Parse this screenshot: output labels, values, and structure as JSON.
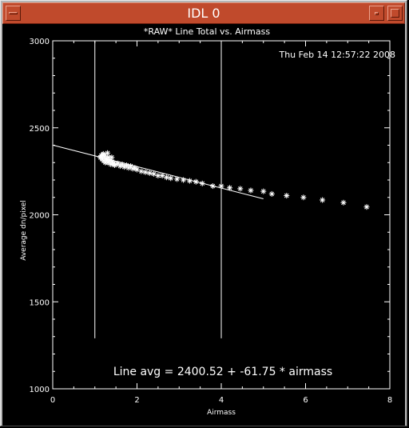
{
  "window": {
    "title": "IDL 0",
    "icons": {
      "menu": "window-menu-icon",
      "minimize": "minimize-icon",
      "maximize": "maximize-icon"
    }
  },
  "colors": {
    "titlebar": "#c04a2c",
    "plot_bg": "#000000",
    "plot_fg": "#ffffff",
    "frame": "#b5b5b5"
  },
  "chart_data": {
    "type": "scatter",
    "title": "*RAW* Line Total vs. Airmass",
    "timestamp": "Thu Feb 14 12:57:22 2008",
    "xlabel": "Airmass",
    "ylabel": "Average dn/pixel",
    "xlim": [
      0,
      8
    ],
    "ylim": [
      1000,
      3000
    ],
    "x_ticks": [
      "0",
      "2",
      "4",
      "6",
      "8"
    ],
    "y_ticks": [
      "1000",
      "1500",
      "2000",
      "2500",
      "3000"
    ],
    "grid": false,
    "annotation": "Line avg = 2400.52 + -61.75 * airmass",
    "fit": {
      "intercept": 2400.52,
      "slope": -61.75,
      "x_range": [
        0,
        5
      ]
    },
    "vertical_lines": [
      {
        "x": 1,
        "y_range": [
          1290,
          3000
        ]
      },
      {
        "x": 4,
        "y_range": [
          1290,
          3000
        ]
      }
    ],
    "series": [
      {
        "marker": "asterisk",
        "x": [
          1.13,
          1.15,
          1.17,
          1.19,
          1.21,
          1.23,
          1.25,
          1.27,
          1.29,
          1.31,
          1.33,
          1.35,
          1.38,
          1.41,
          1.44,
          1.47,
          1.5,
          1.55,
          1.6,
          1.65,
          1.7,
          1.75,
          1.8,
          1.85,
          1.9,
          1.95,
          2.0,
          2.1,
          2.2,
          2.3,
          2.4,
          2.5,
          2.6,
          2.7,
          2.8,
          2.95,
          3.1,
          3.25,
          3.4,
          3.55,
          3.8,
          4.0,
          4.2,
          4.45,
          4.7,
          5.0,
          5.2,
          5.55,
          5.95,
          6.4,
          6.9,
          7.45,
          1.2,
          1.3,
          1.4
        ],
        "y": [
          2330,
          2340,
          2320,
          2345,
          2310,
          2335,
          2300,
          2325,
          2315,
          2300,
          2330,
          2310,
          2290,
          2305,
          2295,
          2285,
          2290,
          2295,
          2280,
          2290,
          2275,
          2285,
          2270,
          2280,
          2265,
          2270,
          2260,
          2250,
          2245,
          2240,
          2235,
          2225,
          2225,
          2215,
          2210,
          2205,
          2200,
          2195,
          2190,
          2180,
          2165,
          2165,
          2155,
          2150,
          2140,
          2135,
          2120,
          2110,
          2100,
          2085,
          2070,
          2045,
          2350,
          2355,
          2330
        ]
      }
    ]
  }
}
